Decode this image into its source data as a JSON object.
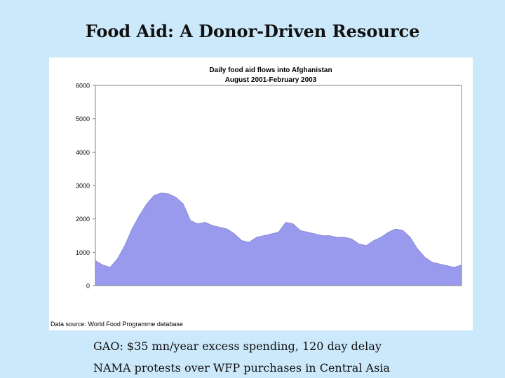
{
  "slide": {
    "title": "Food Aid: A Donor-Driven Resource",
    "bullets": [
      "GAO: $35 mn/year excess spending, 120 day delay",
      "NAMA protests over WFP purchases in Central Asia"
    ]
  },
  "chart_data": {
    "type": "area",
    "title": "Daily food aid flows into Afghanistan",
    "subtitle": "August 2001-February 2003",
    "source": "Data source: World Food Programme database",
    "ylim": [
      0,
      6000
    ],
    "yticks": [
      0,
      1000,
      2000,
      3000,
      4000,
      5000,
      6000
    ],
    "grid": false,
    "legend": "none",
    "fill_color": "#9999ee",
    "x": [
      0,
      2,
      4,
      6,
      8,
      10,
      12,
      14,
      16,
      18,
      20,
      22,
      24,
      26,
      28,
      30,
      32,
      34,
      36,
      38,
      40,
      42,
      44,
      46,
      48,
      50,
      52,
      54,
      56,
      58,
      60,
      62,
      64,
      66,
      68,
      70,
      72,
      74,
      76,
      78,
      80,
      82,
      84,
      86,
      88,
      90,
      92,
      94,
      96,
      98,
      100
    ],
    "series": [
      {
        "values": [
          750,
          620,
          550,
          800,
          1200,
          1700,
          2100,
          2450,
          2700,
          2780,
          2750,
          2650,
          2450,
          1950,
          1850,
          1900,
          1800,
          1750,
          1700,
          1550,
          1350,
          1300,
          1450,
          1500,
          1550,
          1600,
          1900,
          1850,
          1650,
          1600,
          1550,
          1500,
          1500,
          1450,
          1450,
          1400,
          1250,
          1200,
          1350,
          1450,
          1600,
          1700,
          1650,
          1450,
          1100,
          850,
          700,
          650,
          600,
          550,
          620
        ]
      }
    ]
  }
}
